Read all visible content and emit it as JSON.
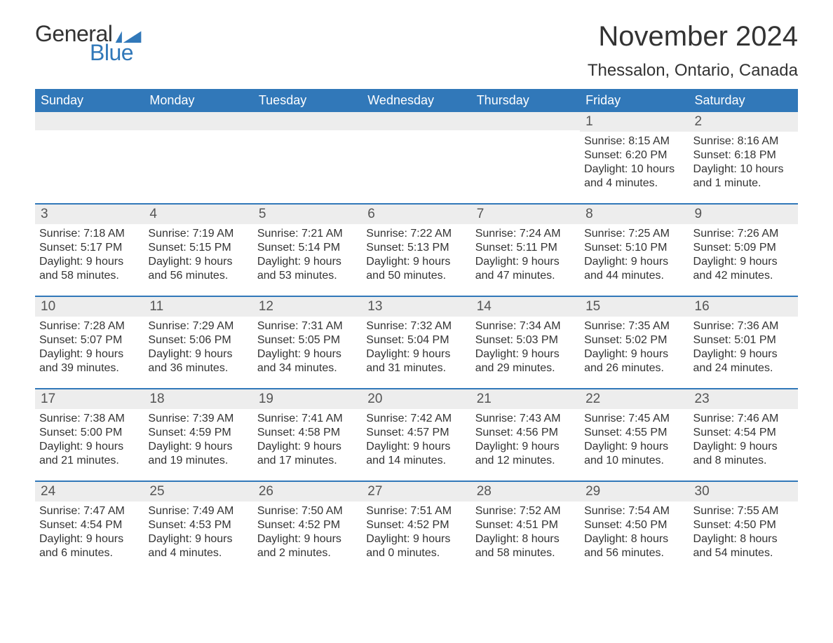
{
  "logo": {
    "general": "General",
    "blue": "Blue"
  },
  "title": "November 2024",
  "location": "Thessalon, Ontario, Canada",
  "colors": {
    "header_bg": "#3178b9",
    "header_text": "#ffffff",
    "daystrip_bg": "#ededed",
    "border": "#3178b9",
    "text": "#333333",
    "logo_blue": "#3178b9"
  },
  "daysOfWeek": [
    "Sunday",
    "Monday",
    "Tuesday",
    "Wednesday",
    "Thursday",
    "Friday",
    "Saturday"
  ],
  "weeks": [
    [
      {
        "blank": true
      },
      {
        "blank": true
      },
      {
        "blank": true
      },
      {
        "blank": true
      },
      {
        "blank": true
      },
      {
        "n": "1",
        "sunrise": "8:15 AM",
        "sunset": "6:20 PM",
        "dl1": "Daylight: 10 hours",
        "dl2": "and 4 minutes."
      },
      {
        "n": "2",
        "sunrise": "8:16 AM",
        "sunset": "6:18 PM",
        "dl1": "Daylight: 10 hours",
        "dl2": "and 1 minute."
      }
    ],
    [
      {
        "n": "3",
        "sunrise": "7:18 AM",
        "sunset": "5:17 PM",
        "dl1": "Daylight: 9 hours",
        "dl2": "and 58 minutes."
      },
      {
        "n": "4",
        "sunrise": "7:19 AM",
        "sunset": "5:15 PM",
        "dl1": "Daylight: 9 hours",
        "dl2": "and 56 minutes."
      },
      {
        "n": "5",
        "sunrise": "7:21 AM",
        "sunset": "5:14 PM",
        "dl1": "Daylight: 9 hours",
        "dl2": "and 53 minutes."
      },
      {
        "n": "6",
        "sunrise": "7:22 AM",
        "sunset": "5:13 PM",
        "dl1": "Daylight: 9 hours",
        "dl2": "and 50 minutes."
      },
      {
        "n": "7",
        "sunrise": "7:24 AM",
        "sunset": "5:11 PM",
        "dl1": "Daylight: 9 hours",
        "dl2": "and 47 minutes."
      },
      {
        "n": "8",
        "sunrise": "7:25 AM",
        "sunset": "5:10 PM",
        "dl1": "Daylight: 9 hours",
        "dl2": "and 44 minutes."
      },
      {
        "n": "9",
        "sunrise": "7:26 AM",
        "sunset": "5:09 PM",
        "dl1": "Daylight: 9 hours",
        "dl2": "and 42 minutes."
      }
    ],
    [
      {
        "n": "10",
        "sunrise": "7:28 AM",
        "sunset": "5:07 PM",
        "dl1": "Daylight: 9 hours",
        "dl2": "and 39 minutes."
      },
      {
        "n": "11",
        "sunrise": "7:29 AM",
        "sunset": "5:06 PM",
        "dl1": "Daylight: 9 hours",
        "dl2": "and 36 minutes."
      },
      {
        "n": "12",
        "sunrise": "7:31 AM",
        "sunset": "5:05 PM",
        "dl1": "Daylight: 9 hours",
        "dl2": "and 34 minutes."
      },
      {
        "n": "13",
        "sunrise": "7:32 AM",
        "sunset": "5:04 PM",
        "dl1": "Daylight: 9 hours",
        "dl2": "and 31 minutes."
      },
      {
        "n": "14",
        "sunrise": "7:34 AM",
        "sunset": "5:03 PM",
        "dl1": "Daylight: 9 hours",
        "dl2": "and 29 minutes."
      },
      {
        "n": "15",
        "sunrise": "7:35 AM",
        "sunset": "5:02 PM",
        "dl1": "Daylight: 9 hours",
        "dl2": "and 26 minutes."
      },
      {
        "n": "16",
        "sunrise": "7:36 AM",
        "sunset": "5:01 PM",
        "dl1": "Daylight: 9 hours",
        "dl2": "and 24 minutes."
      }
    ],
    [
      {
        "n": "17",
        "sunrise": "7:38 AM",
        "sunset": "5:00 PM",
        "dl1": "Daylight: 9 hours",
        "dl2": "and 21 minutes."
      },
      {
        "n": "18",
        "sunrise": "7:39 AM",
        "sunset": "4:59 PM",
        "dl1": "Daylight: 9 hours",
        "dl2": "and 19 minutes."
      },
      {
        "n": "19",
        "sunrise": "7:41 AM",
        "sunset": "4:58 PM",
        "dl1": "Daylight: 9 hours",
        "dl2": "and 17 minutes."
      },
      {
        "n": "20",
        "sunrise": "7:42 AM",
        "sunset": "4:57 PM",
        "dl1": "Daylight: 9 hours",
        "dl2": "and 14 minutes."
      },
      {
        "n": "21",
        "sunrise": "7:43 AM",
        "sunset": "4:56 PM",
        "dl1": "Daylight: 9 hours",
        "dl2": "and 12 minutes."
      },
      {
        "n": "22",
        "sunrise": "7:45 AM",
        "sunset": "4:55 PM",
        "dl1": "Daylight: 9 hours",
        "dl2": "and 10 minutes."
      },
      {
        "n": "23",
        "sunrise": "7:46 AM",
        "sunset": "4:54 PM",
        "dl1": "Daylight: 9 hours",
        "dl2": "and 8 minutes."
      }
    ],
    [
      {
        "n": "24",
        "sunrise": "7:47 AM",
        "sunset": "4:54 PM",
        "dl1": "Daylight: 9 hours",
        "dl2": "and 6 minutes."
      },
      {
        "n": "25",
        "sunrise": "7:49 AM",
        "sunset": "4:53 PM",
        "dl1": "Daylight: 9 hours",
        "dl2": "and 4 minutes."
      },
      {
        "n": "26",
        "sunrise": "7:50 AM",
        "sunset": "4:52 PM",
        "dl1": "Daylight: 9 hours",
        "dl2": "and 2 minutes."
      },
      {
        "n": "27",
        "sunrise": "7:51 AM",
        "sunset": "4:52 PM",
        "dl1": "Daylight: 9 hours",
        "dl2": "and 0 minutes."
      },
      {
        "n": "28",
        "sunrise": "7:52 AM",
        "sunset": "4:51 PM",
        "dl1": "Daylight: 8 hours",
        "dl2": "and 58 minutes."
      },
      {
        "n": "29",
        "sunrise": "7:54 AM",
        "sunset": "4:50 PM",
        "dl1": "Daylight: 8 hours",
        "dl2": "and 56 minutes."
      },
      {
        "n": "30",
        "sunrise": "7:55 AM",
        "sunset": "4:50 PM",
        "dl1": "Daylight: 8 hours",
        "dl2": "and 54 minutes."
      }
    ]
  ],
  "labels": {
    "sunrise_prefix": "Sunrise: ",
    "sunset_prefix": "Sunset: "
  }
}
